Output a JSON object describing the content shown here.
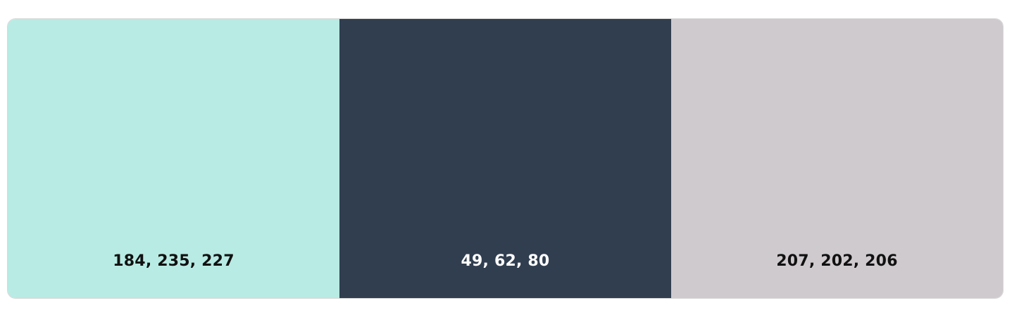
{
  "palette": {
    "swatches": [
      {
        "label": "184, 235, 227",
        "color": "#b8ebe3",
        "text_color": "#111111"
      },
      {
        "label": "49, 62, 80",
        "color": "#313e50",
        "text_color": "#ffffff"
      },
      {
        "label": "207, 202, 206",
        "color": "#cfcace",
        "text_color": "#111111"
      }
    ]
  }
}
